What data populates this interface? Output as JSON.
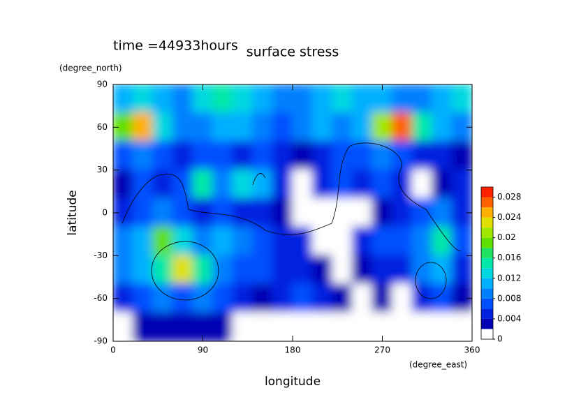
{
  "chart_data": {
    "type": "contour",
    "title": "surface stress",
    "subtitle": "time =44933hours",
    "x_label": "longitude",
    "y_label": "latitude",
    "x_unit": "(degree_east)",
    "y_unit": "(degree_north)",
    "xlim": [
      0,
      360
    ],
    "ylim": [
      -90,
      90
    ],
    "xticks": [
      0,
      90,
      180,
      270,
      360
    ],
    "yticks": [
      90,
      60,
      30,
      0,
      -30,
      -60,
      -90
    ],
    "x": [
      10,
      30,
      50,
      70,
      90,
      110,
      130,
      150,
      170,
      190,
      210,
      230,
      250,
      270,
      290,
      310,
      330,
      350
    ],
    "y": [
      80,
      60,
      40,
      20,
      0,
      -20,
      -40,
      -60,
      -80
    ],
    "z": [
      [
        0.01,
        0.012,
        0.01,
        0.008,
        0.012,
        0.014,
        0.012,
        0.01,
        0.008,
        0.008,
        0.01,
        0.012,
        0.01,
        0.01,
        0.008,
        0.008,
        0.01,
        0.012
      ],
      [
        0.018,
        0.024,
        0.012,
        0.008,
        0.008,
        0.01,
        0.01,
        0.008,
        0.006,
        0.008,
        0.01,
        0.008,
        0.01,
        0.02,
        0.026,
        0.014,
        0.01,
        0.008
      ],
      [
        0.006,
        0.008,
        0.006,
        0.004,
        0.006,
        0.006,
        0.004,
        0.006,
        0.004,
        0.002,
        0.004,
        0.006,
        0.006,
        0.008,
        0.006,
        0.004,
        0.004,
        0.002
      ],
      [
        0.002,
        0.006,
        0.004,
        0.006,
        0.014,
        0.008,
        0.012,
        0.01,
        0.004,
        0,
        0.004,
        0.006,
        0.004,
        0.006,
        0.004,
        0,
        0.002,
        0.004
      ],
      [
        0.004,
        0.006,
        0.008,
        0.006,
        0.004,
        0.006,
        0.004,
        0.004,
        0.002,
        0,
        0,
        0,
        0,
        0.002,
        0.004,
        0.006,
        0.008,
        0.004
      ],
      [
        0.008,
        0.01,
        0.018,
        0.012,
        0.008,
        0.01,
        0.008,
        0.006,
        0.004,
        0.004,
        0,
        0,
        0.004,
        0.006,
        0.006,
        0.008,
        0.014,
        0.006
      ],
      [
        0.008,
        0.01,
        0.014,
        0.022,
        0.014,
        0.008,
        0.006,
        0.006,
        0.004,
        0.004,
        0.002,
        0,
        0.002,
        0.004,
        0.004,
        0.008,
        0.01,
        0.004
      ],
      [
        0.004,
        0.006,
        0.008,
        0.006,
        0.008,
        0.006,
        0.004,
        0.002,
        0.004,
        0.006,
        0.004,
        0.002,
        0,
        0.002,
        0,
        0.004,
        0.006,
        0.002
      ],
      [
        0,
        0.002,
        0.002,
        0.002,
        0.002,
        0.002,
        0,
        0,
        0,
        0,
        0,
        0,
        0,
        0,
        0,
        0,
        0,
        0
      ]
    ],
    "levels": [
      0,
      0.002,
      0.004,
      0.006,
      0.008,
      0.01,
      0.012,
      0.014,
      0.016,
      0.018,
      0.02,
      0.022,
      0.024,
      0.026,
      0.028,
      0.03
    ],
    "colors": [
      "#ffffff",
      "#0000b4",
      "#0022e0",
      "#0050ff",
      "#0080ff",
      "#00b0ff",
      "#00d8e0",
      "#00e8a8",
      "#20e060",
      "#60e000",
      "#a0e800",
      "#e0e000",
      "#ffb000",
      "#ff6000",
      "#ff2000"
    ],
    "colorbar_ticks": [
      0,
      0.004,
      0.008,
      0.012,
      0.016,
      0.02,
      0.024,
      0.028
    ]
  }
}
